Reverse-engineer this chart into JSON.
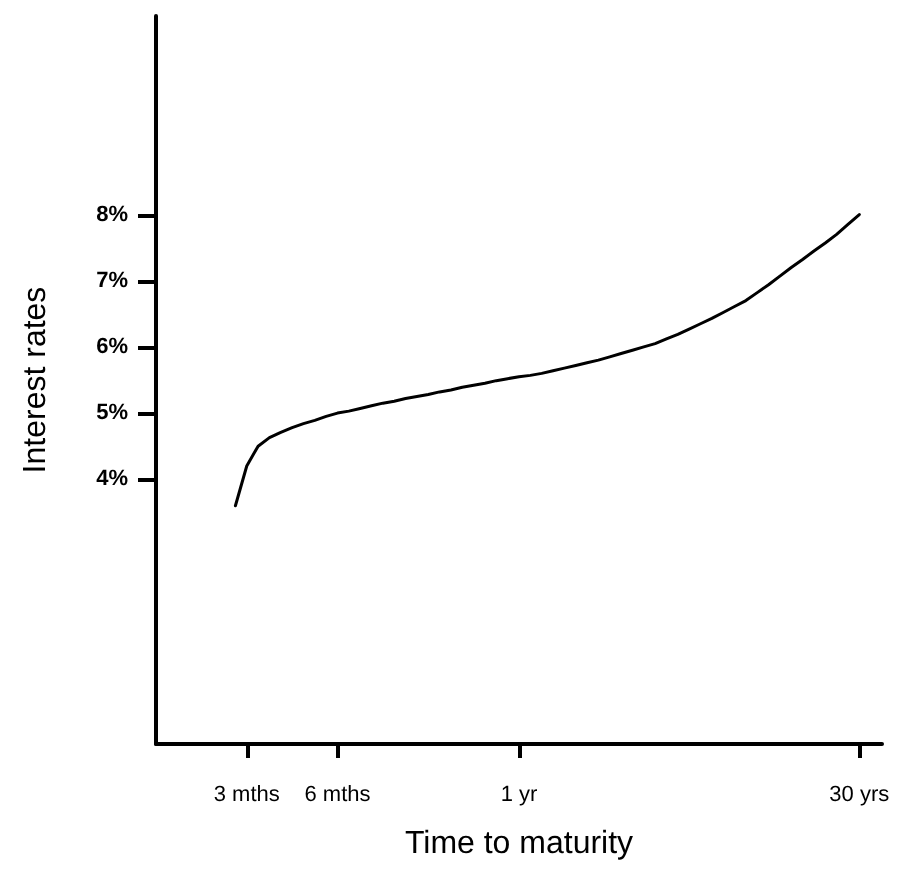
{
  "chart_data": {
    "type": "line",
    "xlabel": "Time to maturity",
    "ylabel": "Interest rates",
    "categories": [
      null,
      null,
      null,
      null,
      null,
      null,
      null,
      null,
      "3 mths",
      null,
      null,
      null,
      null,
      null,
      null,
      null,
      "6 mths",
      null,
      null,
      null,
      null,
      null,
      null,
      null,
      null,
      null,
      null,
      null,
      null,
      null,
      null,
      null,
      "1 yr",
      null,
      null,
      null,
      null,
      null,
      null,
      null,
      null,
      null,
      null,
      null,
      null,
      null,
      null,
      null,
      null,
      null,
      null,
      null,
      null,
      null,
      null,
      null,
      null,
      null,
      null,
      null,
      null,
      null,
      "30 yrs",
      null,
      null
    ],
    "series": [
      {
        "color": "#000000",
        "values": [
          null,
          null,
          null,
          null,
          null,
          null,
          null,
          3.6,
          4.2,
          4.5,
          4.63,
          4.71,
          4.78,
          4.84,
          4.89,
          4.95,
          5.0,
          5.03,
          5.07,
          5.11,
          5.15,
          5.18,
          5.22,
          5.25,
          5.28,
          5.32,
          5.35,
          5.39,
          5.42,
          5.45,
          5.49,
          5.52,
          5.55,
          5.57,
          5.6,
          5.64,
          5.68,
          5.72,
          5.76,
          5.8,
          5.85,
          5.9,
          5.95,
          6.0,
          6.05,
          6.12,
          6.19,
          6.27,
          6.35,
          6.43,
          6.52,
          6.61,
          6.7,
          6.82,
          6.94,
          7.07,
          7.2,
          7.32,
          7.45,
          7.57,
          7.7,
          7.85,
          8.0,
          null,
          null
        ]
      }
    ],
    "ylim": [
      0,
      11
    ],
    "yticks": [
      {
        "value": 4,
        "label": "4%"
      },
      {
        "value": 5,
        "label": "5%"
      },
      {
        "value": 6,
        "label": "6%"
      },
      {
        "value": 7,
        "label": "7%"
      },
      {
        "value": 8,
        "label": "8%"
      }
    ],
    "grid": false,
    "marker": "none",
    "line_style": "solid"
  }
}
